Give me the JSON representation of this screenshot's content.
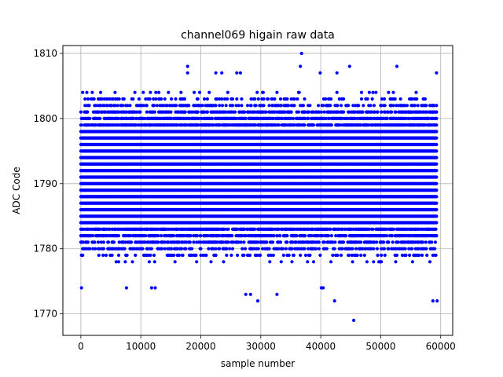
{
  "chart_data": {
    "type": "scatter",
    "title": "channel069 higain raw data",
    "xlabel": "sample number",
    "ylabel": "ADC Code",
    "xlim": [
      -3000,
      62000
    ],
    "ylim": [
      1766.7,
      1811.2
    ],
    "xticks": [
      0,
      10000,
      20000,
      30000,
      40000,
      50000,
      60000
    ],
    "xtick_labels": [
      "0",
      "10000",
      "20000",
      "30000",
      "40000",
      "50000",
      "60000"
    ],
    "yticks": [
      1770,
      1780,
      1790,
      1800,
      1810
    ],
    "ytick_labels": [
      "1770",
      "1780",
      "1790",
      "1800",
      "1810"
    ],
    "grid": true,
    "series": [
      {
        "color": "#0000ff",
        "x_range": [
          0,
          59300
        ],
        "core_range": [
          1778,
          1804
        ],
        "outliers": [
          {
            "x": 100,
            "y": 1774
          },
          {
            "x": 7600,
            "y": 1774
          },
          {
            "x": 11800,
            "y": 1774
          },
          {
            "x": 12400,
            "y": 1774
          },
          {
            "x": 17800,
            "y": 1808
          },
          {
            "x": 17800,
            "y": 1807
          },
          {
            "x": 22500,
            "y": 1807
          },
          {
            "x": 23500,
            "y": 1807
          },
          {
            "x": 26000,
            "y": 1807
          },
          {
            "x": 26600,
            "y": 1807
          },
          {
            "x": 27500,
            "y": 1773
          },
          {
            "x": 28300,
            "y": 1773
          },
          {
            "x": 29500,
            "y": 1772
          },
          {
            "x": 32700,
            "y": 1773
          },
          {
            "x": 36800,
            "y": 1810
          },
          {
            "x": 36600,
            "y": 1808
          },
          {
            "x": 39900,
            "y": 1807
          },
          {
            "x": 40100,
            "y": 1774
          },
          {
            "x": 40400,
            "y": 1774
          },
          {
            "x": 42300,
            "y": 1772
          },
          {
            "x": 42700,
            "y": 1807
          },
          {
            "x": 44800,
            "y": 1808
          },
          {
            "x": 45500,
            "y": 1769
          },
          {
            "x": 52700,
            "y": 1808
          },
          {
            "x": 58700,
            "y": 1772
          },
          {
            "x": 59400,
            "y": 1772
          },
          {
            "x": 59300,
            "y": 1807
          }
        ]
      }
    ]
  }
}
